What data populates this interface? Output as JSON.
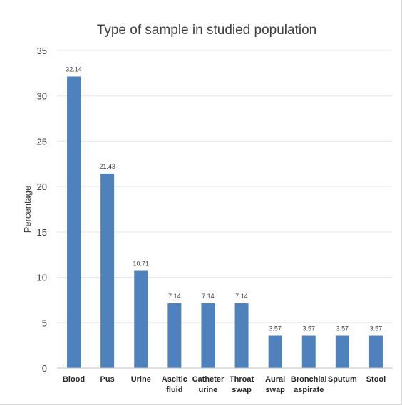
{
  "chart_data": {
    "type": "bar",
    "title": "Type of sample in studied population",
    "xlabel": "",
    "ylabel": "Percentage",
    "ylim": [
      0,
      35
    ],
    "yticks": [
      0,
      5,
      10,
      15,
      20,
      25,
      30,
      35
    ],
    "grid": true,
    "legend": "none",
    "bar_color": "#4f81bd",
    "categories": [
      [
        "Blood"
      ],
      [
        "Pus"
      ],
      [
        "Urine"
      ],
      [
        "Ascitic",
        "fluid"
      ],
      [
        "Catheter",
        "urine"
      ],
      [
        "Throat",
        "swap"
      ],
      [
        "Aural",
        "swap"
      ],
      [
        "Bronchial",
        "aspirate"
      ],
      [
        "Sputum"
      ],
      [
        "Stool"
      ]
    ],
    "values": [
      32.14,
      21.43,
      10.71,
      7.14,
      7.14,
      7.14,
      3.57,
      3.57,
      3.57,
      3.57
    ],
    "data_labels": [
      "32.14",
      "21.43",
      "10.71",
      "7.14",
      "7.14",
      "7.14",
      "3.57",
      "3.57",
      "3.57",
      "3.57"
    ]
  }
}
